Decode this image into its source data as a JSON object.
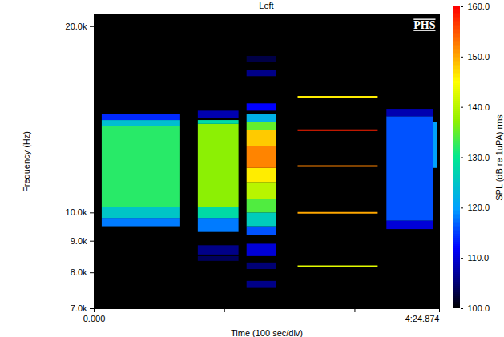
{
  "chart_data": {
    "type": "spectrogram",
    "title": "Left",
    "annotation": "PHS",
    "x_label": "Time (100 sec/div)",
    "y_label": "Frequency (Hz)",
    "log": "y",
    "xlim": [
      0,
      264.874
    ],
    "xticks": [
      {
        "value": 0,
        "label": "0.000"
      },
      {
        "value": 100,
        "label": null
      },
      {
        "value": 200,
        "label": null
      },
      {
        "value": 264.874,
        "label": "4:24.874"
      }
    ],
    "ylim": [
      7000,
      20900
    ],
    "yticks": [
      {
        "value": 7000,
        "label": "7.0k"
      },
      {
        "value": 8000,
        "label": "8.0k"
      },
      {
        "value": 9000,
        "label": "9.0k"
      },
      {
        "value": 10000,
        "label": "10.0k"
      },
      {
        "value": 20000,
        "label": "20.0k"
      }
    ],
    "color_label": "SPL (dB re 1uPA) rms",
    "clim": [
      100,
      160
    ],
    "cticks": [
      {
        "value": 100,
        "label": "100.0"
      },
      {
        "value": 110,
        "label": "110.0"
      },
      {
        "value": 120,
        "label": "120.0"
      },
      {
        "value": 130,
        "label": "130.0"
      },
      {
        "value": 140,
        "label": "140.0"
      },
      {
        "value": 150,
        "label": "150.0"
      },
      {
        "value": 160,
        "label": "160.0"
      }
    ],
    "cells": [
      {
        "t1": 6.1,
        "t2": 66.3,
        "f1": 9500,
        "f2": 9800,
        "value": 118
      },
      {
        "t1": 6.1,
        "t2": 66.3,
        "f1": 9800,
        "f2": 10200,
        "value": 125
      },
      {
        "t1": 6.1,
        "t2": 66.3,
        "f1": 10200,
        "f2": 13800,
        "value": 132
      },
      {
        "t1": 6.1,
        "t2": 66.3,
        "f1": 13800,
        "f2": 14100,
        "value": 124
      },
      {
        "t1": 6.1,
        "t2": 66.3,
        "f1": 14100,
        "f2": 14400,
        "value": 114
      },
      {
        "t1": 79.8,
        "t2": 111.0,
        "f1": 8350,
        "f2": 8500,
        "value": 104
      },
      {
        "t1": 79.8,
        "t2": 111.0,
        "f1": 8550,
        "f2": 8850,
        "value": 106
      },
      {
        "t1": 79.8,
        "t2": 111.0,
        "f1": 9300,
        "f2": 9800,
        "value": 118
      },
      {
        "t1": 79.8,
        "t2": 111.0,
        "f1": 9800,
        "f2": 10200,
        "value": 128
      },
      {
        "t1": 79.8,
        "t2": 111.0,
        "f1": 10200,
        "f2": 13900,
        "value": 137
      },
      {
        "t1": 79.8,
        "t2": 111.0,
        "f1": 13900,
        "f2": 14100,
        "value": 128
      },
      {
        "t1": 79.8,
        "t2": 111.0,
        "f1": 14200,
        "f2": 14600,
        "value": 108
      },
      {
        "t1": 117.2,
        "t2": 139.9,
        "f1": 7550,
        "f2": 7750,
        "value": 106
      },
      {
        "t1": 117.2,
        "t2": 139.9,
        "f1": 8100,
        "f2": 8300,
        "value": 105
      },
      {
        "t1": 117.2,
        "t2": 139.9,
        "f1": 8500,
        "f2": 8900,
        "value": 110
      },
      {
        "t1": 117.2,
        "t2": 139.9,
        "f1": 9200,
        "f2": 9500,
        "value": 116
      },
      {
        "t1": 117.2,
        "t2": 139.9,
        "f1": 9500,
        "f2": 10000,
        "value": 126
      },
      {
        "t1": 117.2,
        "t2": 139.9,
        "f1": 10000,
        "f2": 10500,
        "value": 134
      },
      {
        "t1": 117.2,
        "t2": 139.9,
        "f1": 10500,
        "f2": 11200,
        "value": 140
      },
      {
        "t1": 117.2,
        "t2": 139.9,
        "f1": 11200,
        "f2": 11800,
        "value": 146
      },
      {
        "t1": 117.2,
        "t2": 139.9,
        "f1": 11800,
        "f2": 12800,
        "value": 152
      },
      {
        "t1": 117.2,
        "t2": 139.9,
        "f1": 12800,
        "f2": 13600,
        "value": 148
      },
      {
        "t1": 117.2,
        "t2": 139.9,
        "f1": 13600,
        "f2": 14000,
        "value": 135
      },
      {
        "t1": 117.2,
        "t2": 139.9,
        "f1": 14000,
        "f2": 14400,
        "value": 122
      },
      {
        "t1": 117.2,
        "t2": 139.9,
        "f1": 14600,
        "f2": 15000,
        "value": 112
      },
      {
        "t1": 117.2,
        "t2": 139.9,
        "f1": 16600,
        "f2": 17000,
        "value": 106
      },
      {
        "t1": 117.2,
        "t2": 139.9,
        "f1": 17500,
        "f2": 17900,
        "value": 103
      },
      {
        "t1": 224.5,
        "t2": 260.1,
        "f1": 9400,
        "f2": 9700,
        "value": 110
      },
      {
        "t1": 224.5,
        "t2": 260.1,
        "f1": 9700,
        "f2": 14300,
        "value": 116
      },
      {
        "t1": 224.5,
        "t2": 260.1,
        "f1": 14300,
        "f2": 14700,
        "value": 108
      },
      {
        "t1": 260.1,
        "t2": 263.2,
        "f1": 11800,
        "f2": 14000,
        "value": 120
      }
    ],
    "tones": [
      {
        "t1": 156.4,
        "t2": 217.8,
        "f": 15400,
        "value": 146
      },
      {
        "t1": 156.4,
        "t2": 217.8,
        "f": 13600,
        "value": 158
      },
      {
        "t1": 156.4,
        "t2": 217.8,
        "f": 11900,
        "value": 152
      },
      {
        "t1": 156.4,
        "t2": 217.8,
        "f": 10000,
        "value": 150
      },
      {
        "t1": 156.4,
        "t2": 217.8,
        "f": 8200,
        "value": 143
      }
    ]
  }
}
